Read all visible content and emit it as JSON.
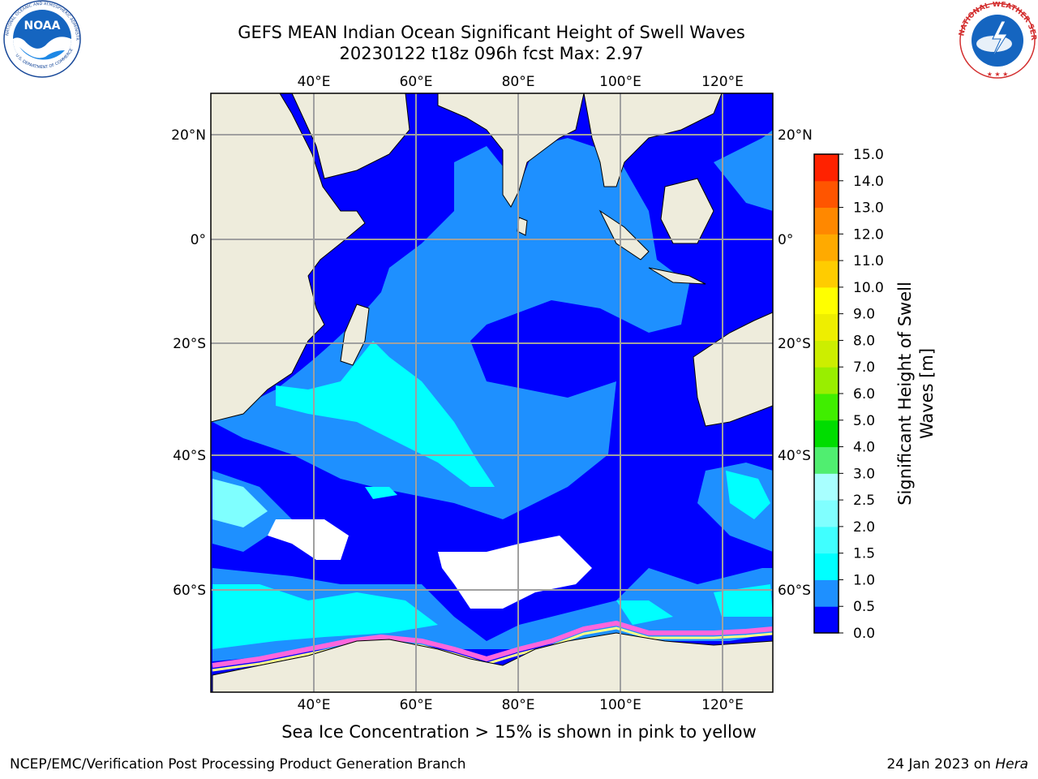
{
  "title": {
    "line1": "GEFS MEAN Indian Ocean Significant Height of Swell Waves",
    "line2": "20230122 t18z 096h fcst   Max: 2.97"
  },
  "logos": {
    "left": {
      "name": "NOAA",
      "ring_text": "NATIONAL OCEANIC AND ATMOSPHERIC ADMINISTRATION",
      "bottom_text": "U.S. DEPARTMENT OF COMMERCE"
    },
    "right": {
      "name": "NATIONAL WEATHER SERVICE"
    }
  },
  "map": {
    "lon_ticks": [
      "40°E",
      "60°E",
      "80°E",
      "100°E",
      "120°E"
    ],
    "lat_ticks_left": [
      "20°N",
      "0°",
      "20°S",
      "40°S",
      "60°S"
    ],
    "lat_ticks_right": [
      "20°N",
      "0°",
      "20°S",
      "40°S",
      "60°S"
    ],
    "grid": true,
    "colors": {
      "land": "#eeecdc",
      "deep_blue": "#0000ff",
      "mid_blue": "#1e90ff",
      "cyan": "#00ffff",
      "light_cyan": "#7fffff",
      "ice_pink": "#ff66dd",
      "ice_yellow": "#ffff88",
      "grid": "#a0a0a0"
    }
  },
  "colorbar": {
    "title_line1": "Significant Height of Swell",
    "title_line2": "Waves [m]",
    "labels": [
      "0.0",
      "0.5",
      "1.0",
      "1.5",
      "2.0",
      "2.5",
      "3.0",
      "4.0",
      "5.0",
      "6.0",
      "7.0",
      "8.0",
      "9.0",
      "10.0",
      "11.0",
      "12.0",
      "13.0",
      "14.0",
      "15.0"
    ],
    "colors": [
      "#0000ff",
      "#1e90ff",
      "#00ffff",
      "#40ffff",
      "#80ffff",
      "#a8ffff",
      "#50ee70",
      "#00dd00",
      "#40ee00",
      "#99ee00",
      "#ccee00",
      "#eeee00",
      "#ffff00",
      "#ffcc00",
      "#ffaa00",
      "#ff8800",
      "#ff5500",
      "#ff2200",
      "#ff0000"
    ]
  },
  "note": "Sea Ice Concentration > 15% is shown in pink to yellow",
  "footer": {
    "left": "NCEP/EMC/Verification Post Processing Product Generation Branch",
    "date": "24 Jan 2023 on ",
    "host": "Hera"
  }
}
